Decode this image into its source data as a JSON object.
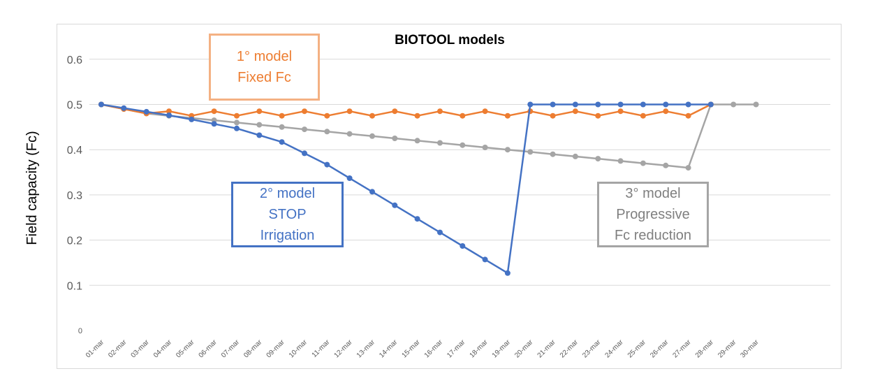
{
  "chart_data": {
    "type": "line",
    "title": "BIOTOOL models",
    "xlabel": "",
    "ylabel": "Field capacity (Fc)",
    "ylim": [
      0,
      0.65
    ],
    "yticks": [
      "0",
      "0.1",
      "0.2",
      "0.3",
      "0.4",
      "0.5",
      "0.6"
    ],
    "grid": true,
    "legend": "none",
    "categories": [
      "01-mar",
      "02-mar",
      "03-mar",
      "04-mar",
      "05-mar",
      "06-mar",
      "07-mar",
      "08-mar",
      "09-mar",
      "10-mar",
      "11-mar",
      "12-mar",
      "13-mar",
      "14-mar",
      "15-mar",
      "16-mar",
      "17-mar",
      "18-mar",
      "19-mar",
      "20-mar",
      "21-mar",
      "22-mar",
      "23-mar",
      "24-mar",
      "25-mar",
      "26-mar",
      "27-mar",
      "28-mar",
      "29-mar",
      "30-mar"
    ],
    "series": [
      {
        "key": "model1",
        "color": "#ed7d31",
        "values": [
          0.5,
          0.49,
          0.48,
          0.485,
          0.475,
          0.485,
          0.475,
          0.485,
          0.475,
          0.485,
          0.475,
          0.485,
          0.475,
          0.485,
          0.475,
          0.485,
          0.475,
          0.485,
          0.475,
          0.485,
          0.475,
          0.485,
          0.475,
          0.485,
          0.475,
          0.485,
          0.475,
          0.5,
          null,
          null
        ]
      },
      {
        "key": "model2",
        "color": "#4472c4",
        "values": [
          0.5,
          0.492,
          0.484,
          0.476,
          0.467,
          0.457,
          0.447,
          0.432,
          0.417,
          0.392,
          0.367,
          0.337,
          0.307,
          0.277,
          0.247,
          0.217,
          0.187,
          0.157,
          0.127,
          0.5,
          0.5,
          0.5,
          0.5,
          0.5,
          0.5,
          0.5,
          0.5,
          0.5,
          null,
          null
        ]
      },
      {
        "key": "model3",
        "color": "#a5a5a5",
        "values": [
          0.5,
          0.49,
          0.48,
          0.475,
          0.47,
          0.465,
          0.46,
          0.455,
          0.45,
          0.445,
          0.44,
          0.435,
          0.43,
          0.425,
          0.42,
          0.415,
          0.41,
          0.405,
          0.4,
          0.395,
          0.39,
          0.385,
          0.38,
          0.375,
          0.37,
          0.365,
          0.36,
          0.5,
          0.5,
          0.5
        ]
      }
    ],
    "annotations": [
      {
        "key": "model1",
        "lines": [
          "1° model",
          "Fixed Fc"
        ]
      },
      {
        "key": "model2",
        "lines": [
          "2° model",
          "STOP",
          "Irrigation"
        ]
      },
      {
        "key": "model3",
        "lines": [
          "3° model",
          "Progressive",
          "Fc reduction"
        ]
      }
    ]
  }
}
